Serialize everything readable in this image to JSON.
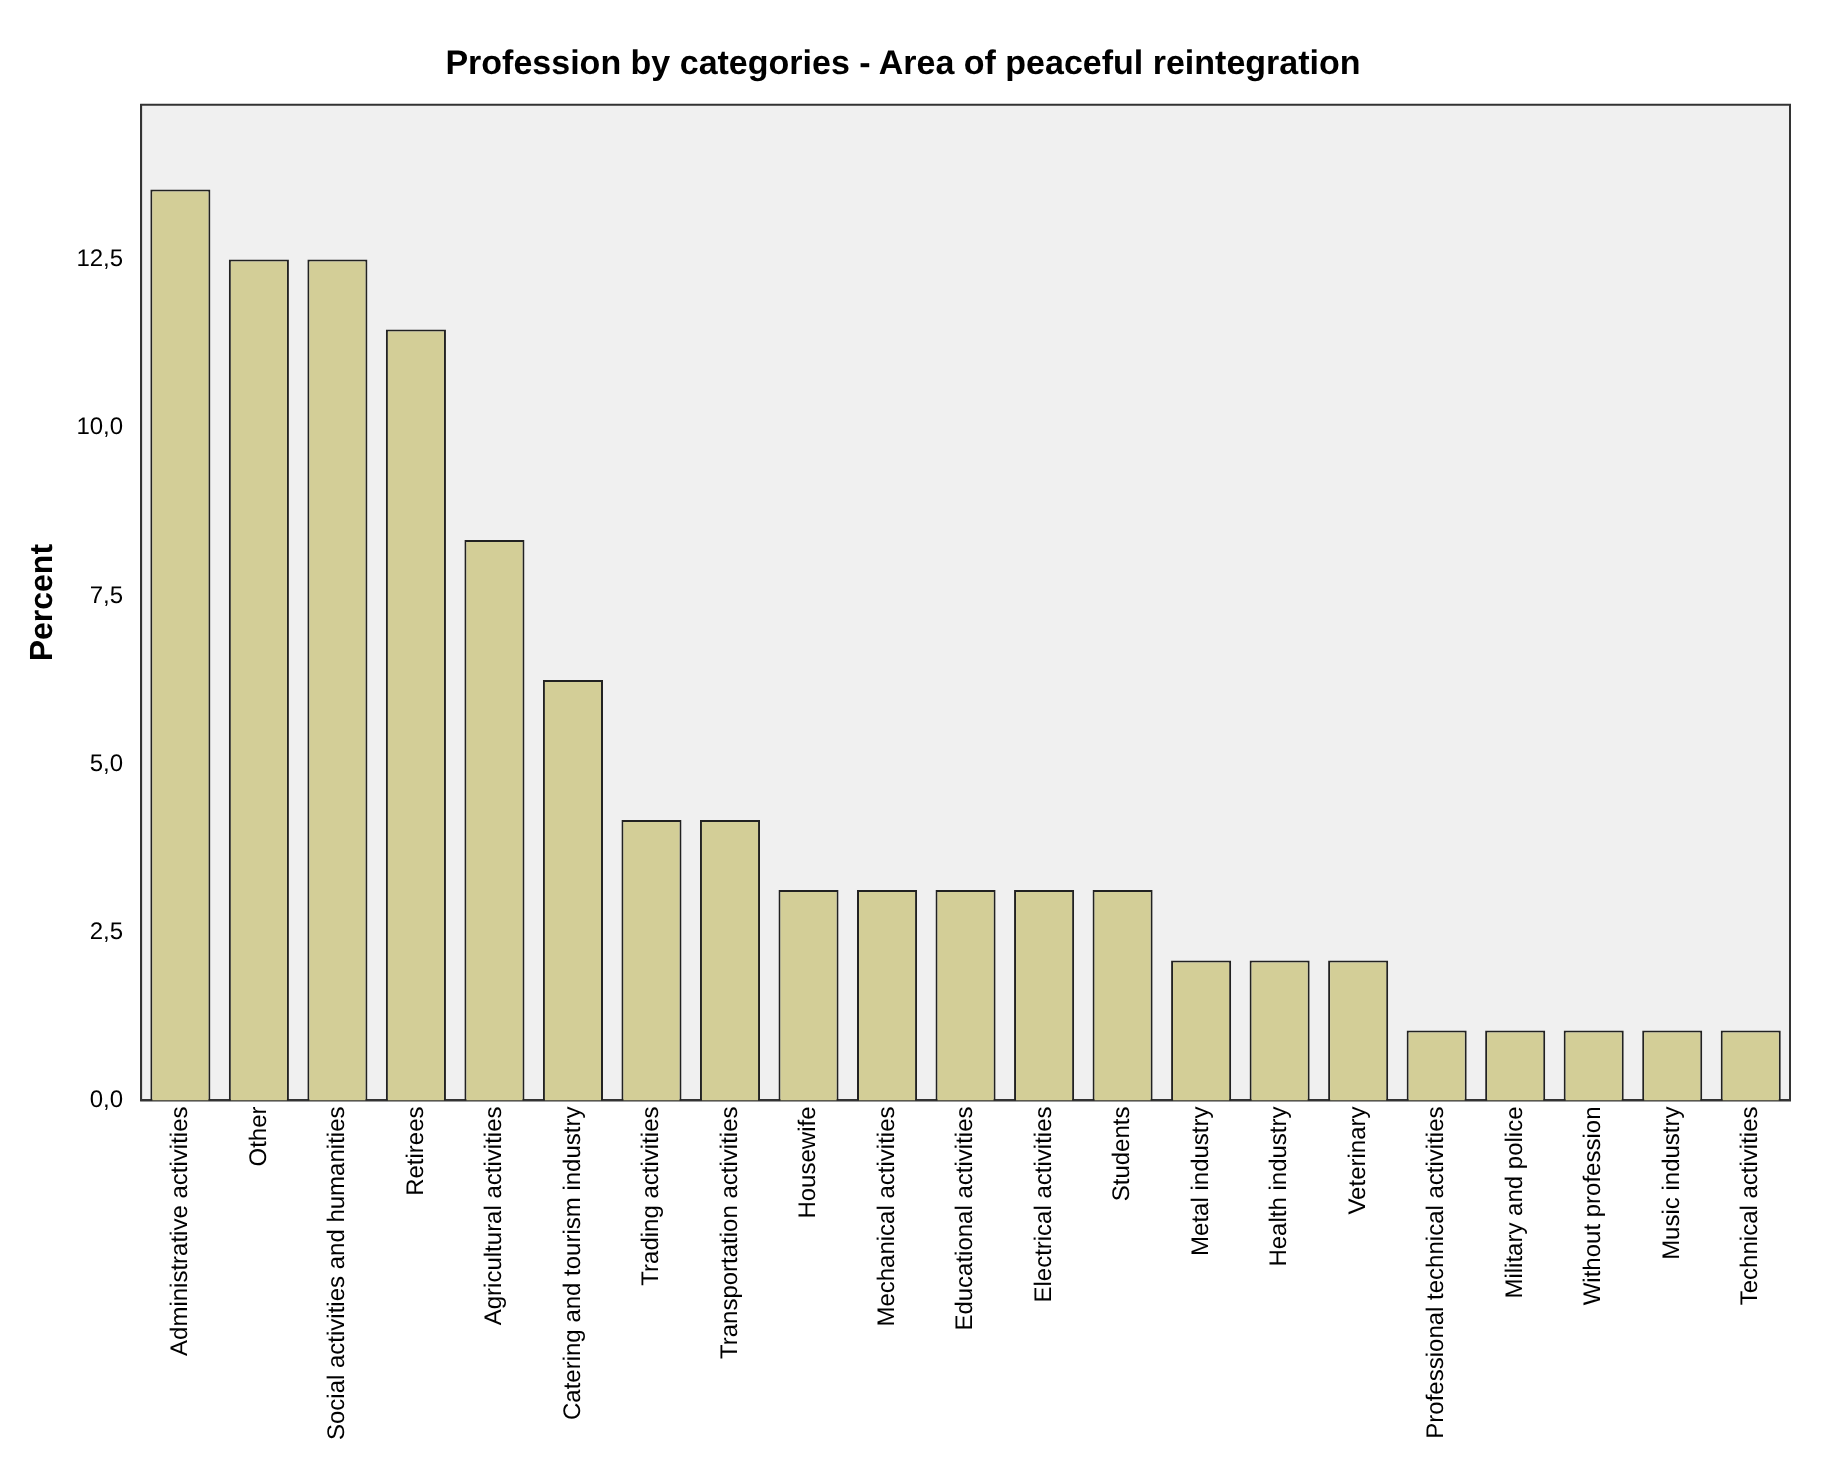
{
  "chart_data": {
    "type": "bar",
    "title": "Profession by categories - Area of peaceful reintegration",
    "ylabel": "Percent",
    "categories": [
      "Administrative activities",
      "Other",
      "Social activities and humanities",
      "Retirees",
      "Agricultural activities",
      "Catering and tourism industry",
      "Trading activities",
      "Transportation activities",
      "Housewife",
      "Mechanical activities",
      "Educational activities",
      "Electrical activities",
      "Students",
      "Metal industry",
      "Health industry",
      "Veterinary",
      "Professional technical activities",
      "Military and police",
      "Without profession",
      "Music industry",
      "Technical activities"
    ],
    "values": [
      13.54,
      12.5,
      12.5,
      11.46,
      8.33,
      6.25,
      4.17,
      4.17,
      3.13,
      3.13,
      3.13,
      3.13,
      3.13,
      2.08,
      2.08,
      2.08,
      1.04,
      1.04,
      1.04,
      1.04,
      1.04
    ],
    "color": "#d3ce97",
    "ylim": [
      0,
      14.8
    ],
    "yticks": [
      {
        "value": 0,
        "label": "0,0"
      },
      {
        "value": 2.5,
        "label": "2,5"
      },
      {
        "value": 5,
        "label": "5,0"
      },
      {
        "value": 7.5,
        "label": "7,5"
      },
      {
        "value": 10,
        "label": "10,0"
      },
      {
        "value": 12.5,
        "label": "12,5"
      }
    ],
    "grid": false,
    "legend": false
  }
}
